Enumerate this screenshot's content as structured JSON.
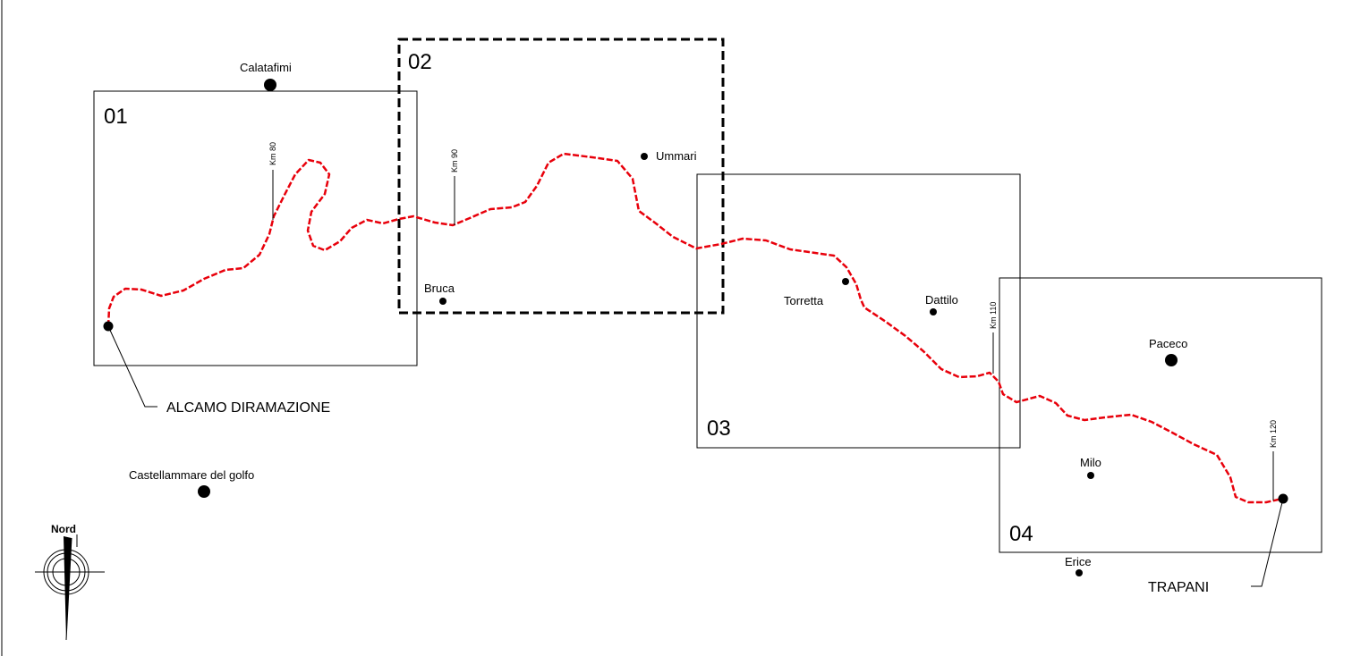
{
  "colors": {
    "route": "#e8000b",
    "ink": "#000000",
    "background": "#ffffff"
  },
  "panels": [
    {
      "id": "panel-01",
      "label": "01",
      "style": "solid"
    },
    {
      "id": "panel-02",
      "label": "02",
      "style": "dashed-bold"
    },
    {
      "id": "panel-03",
      "label": "03",
      "style": "solid"
    },
    {
      "id": "panel-04",
      "label": "04",
      "style": "solid"
    }
  ],
  "towns": {
    "calatafimi": "Calatafimi",
    "ummari": "Ummari",
    "bruca": "Bruca",
    "torretta": "Torretta",
    "dattilo": "Dattilo",
    "paceco": "Paceco",
    "milo": "Milo",
    "erice": "Erice",
    "castellammare": "Castellammare del golfo"
  },
  "km_markers": {
    "km80": "Km 80",
    "km90": "Km 90",
    "km110": "Km 110",
    "km120": "Km 120"
  },
  "endpoints": {
    "start": "ALCAMO DIRAMAZIONE",
    "end": "TRAPANI"
  },
  "compass": {
    "label": "Nord",
    "icon": "north-arrow-icon"
  }
}
